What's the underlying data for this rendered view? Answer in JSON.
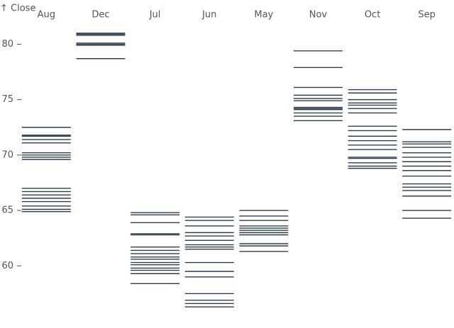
{
  "chart_data": {
    "type": "tick",
    "y_label": "↑ Close",
    "categories": [
      "Aug",
      "Dec",
      "Jul",
      "Jun",
      "May",
      "Nov",
      "Oct",
      "Sep"
    ],
    "values": [
      [
        72.5,
        71.8,
        71.7,
        71.4,
        71.1,
        70.2,
        70.0,
        69.8,
        69.6,
        67.0,
        66.7,
        66.4,
        66.1,
        65.8,
        65.4,
        65.1,
        64.9
      ],
      [
        81.0,
        80.9,
        80.8,
        80.1,
        80.0,
        79.9,
        78.7
      ],
      [
        64.8,
        64.6,
        63.9,
        62.9,
        62.8,
        61.7,
        61.4,
        61.1,
        60.8,
        60.6,
        60.3,
        60.1,
        59.8,
        59.6,
        59.3,
        58.4
      ],
      [
        64.4,
        64.1,
        63.6,
        63.0,
        62.7,
        62.3,
        61.9,
        61.7,
        61.5,
        60.3,
        59.5,
        59.0,
        57.5,
        56.9,
        56.6,
        56.3
      ],
      [
        65.0,
        64.5,
        64.1,
        63.6,
        63.4,
        63.2,
        63.0,
        62.8,
        62.0,
        61.8,
        61.3
      ],
      [
        79.4,
        77.9,
        76.1,
        75.4,
        75.1,
        74.9,
        74.3,
        74.2,
        74.1,
        73.8,
        73.5,
        73.1
      ],
      [
        75.9,
        75.6,
        75.0,
        74.7,
        74.5,
        74.2,
        73.8,
        72.6,
        72.2,
        71.7,
        71.3,
        70.9,
        70.5,
        69.8,
        69.7,
        69.3,
        69.0,
        68.8
      ],
      [
        72.3,
        71.2,
        71.0,
        70.7,
        70.2,
        69.8,
        69.4,
        69.0,
        68.6,
        68.1,
        67.4,
        67.1,
        66.8,
        66.3,
        65.0,
        64.3
      ]
    ],
    "color": "#2c3e50",
    "ylim": [
      55.8,
      82.2
    ],
    "yticks": [
      60,
      65,
      70,
      75,
      80
    ]
  }
}
